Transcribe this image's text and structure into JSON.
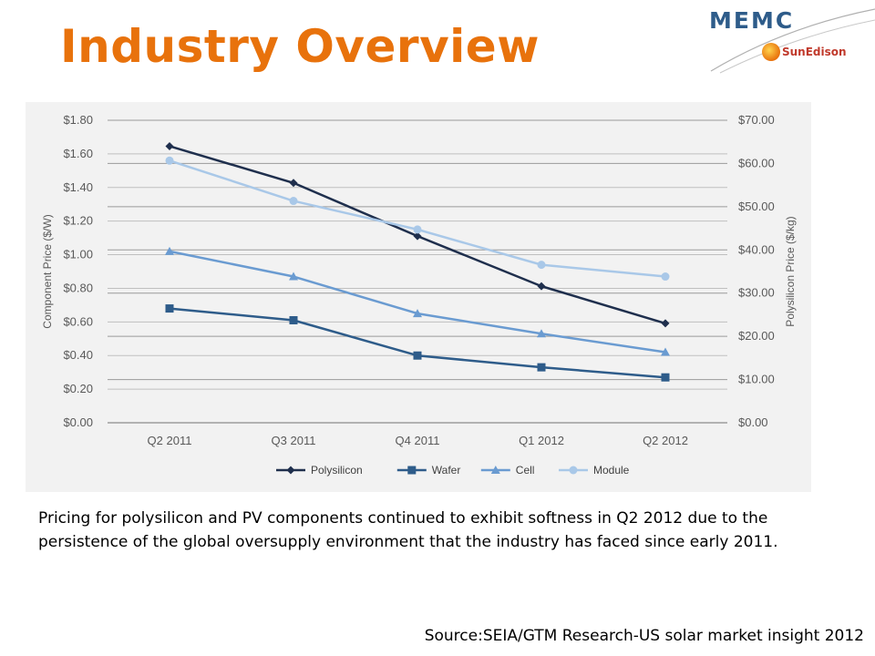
{
  "slide": {
    "title": "Industry Overview",
    "body": "Pricing for polysilicon and PV components continued to exhibit softness in Q2 2012 due to the persistence of the global oversupply environment that the industry has faced since early 2011.",
    "source": "Source:SEIA/GTM Research-US solar market insight 2012"
  },
  "logos": {
    "memc": "MEMC",
    "sunedison": "SunEdison"
  },
  "colors": {
    "title": "#E8720C",
    "polysilicon": "#1F2F4D",
    "wafer": "#2E5C8A",
    "cell": "#6A9BD1",
    "module": "#A9C8E8"
  },
  "chart_data": {
    "type": "line",
    "categories": [
      "Q2 2011",
      "Q3 2011",
      "Q4 2011",
      "Q1 2012",
      "Q2 2012"
    ],
    "y_left": {
      "label": "Component Price ($/W)",
      "range": [
        0,
        1.8
      ],
      "ticks": [
        "$0.00",
        "$0.20",
        "$0.40",
        "$0.60",
        "$0.80",
        "$1.00",
        "$1.20",
        "$1.40",
        "$1.60",
        "$1.80"
      ]
    },
    "y_right": {
      "label": "Polysilicon Price ($/kg)",
      "range": [
        0,
        70
      ],
      "ticks": [
        "$0.00",
        "$10.00",
        "$20.00",
        "$30.00",
        "$40.00",
        "$50.00",
        "$60.00",
        "$70.00"
      ]
    },
    "series": [
      {
        "name": "Polysilicon",
        "axis": "right",
        "marker": "diamond",
        "color": "#1F2F4D",
        "values": [
          64.0,
          55.5,
          43.2,
          31.6,
          23.0
        ]
      },
      {
        "name": "Wafer",
        "axis": "left",
        "marker": "square",
        "color": "#2E5C8A",
        "values": [
          0.68,
          0.61,
          0.4,
          0.33,
          0.27
        ]
      },
      {
        "name": "Cell",
        "axis": "left",
        "marker": "triangle",
        "color": "#6A9BD1",
        "values": [
          1.02,
          0.87,
          0.65,
          0.53,
          0.42
        ]
      },
      {
        "name": "Module",
        "axis": "left",
        "marker": "circle",
        "color": "#A9C8E8",
        "values": [
          1.56,
          1.32,
          1.15,
          0.94,
          0.87
        ]
      }
    ],
    "grid": true,
    "legend": "bottom"
  }
}
